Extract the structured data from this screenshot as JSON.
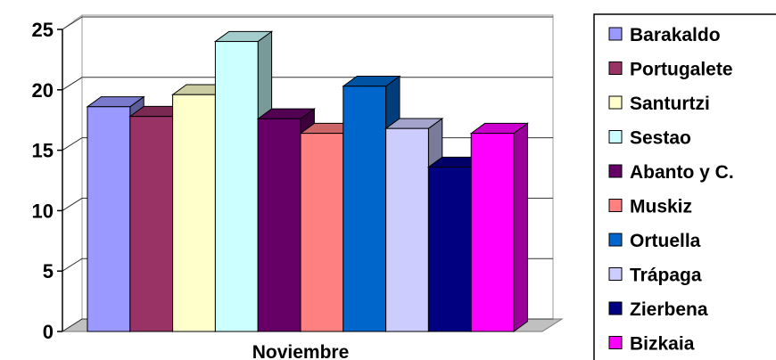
{
  "chart_data": {
    "type": "bar",
    "categories": [
      "Noviembre"
    ],
    "series": [
      {
        "name": "Barakaldo",
        "values": [
          18.6
        ],
        "color": "#9999FF"
      },
      {
        "name": "Portugalete",
        "values": [
          17.8
        ],
        "color": "#993366"
      },
      {
        "name": "Santurtzi",
        "values": [
          19.6
        ],
        "color": "#FFFFCC"
      },
      {
        "name": "Sestao",
        "values": [
          24.0
        ],
        "color": "#CCFFFF"
      },
      {
        "name": "Abanto y C.",
        "values": [
          17.6
        ],
        "color": "#660066"
      },
      {
        "name": "Muskiz",
        "values": [
          16.4
        ],
        "color": "#FF8080"
      },
      {
        "name": "Ortuella",
        "values": [
          20.3
        ],
        "color": "#0066CC"
      },
      {
        "name": "Trápaga",
        "values": [
          16.8
        ],
        "color": "#CCCCFF"
      },
      {
        "name": "Zierbena",
        "values": [
          13.6
        ],
        "color": "#000080"
      },
      {
        "name": "Bizkaia",
        "values": [
          16.4
        ],
        "color": "#FF00FF"
      }
    ],
    "ylim": [
      0,
      25
    ],
    "yticks": [
      "0",
      "5",
      "10",
      "15",
      "20",
      "25"
    ],
    "grid": true,
    "legend_position": "right",
    "three_d": true
  }
}
